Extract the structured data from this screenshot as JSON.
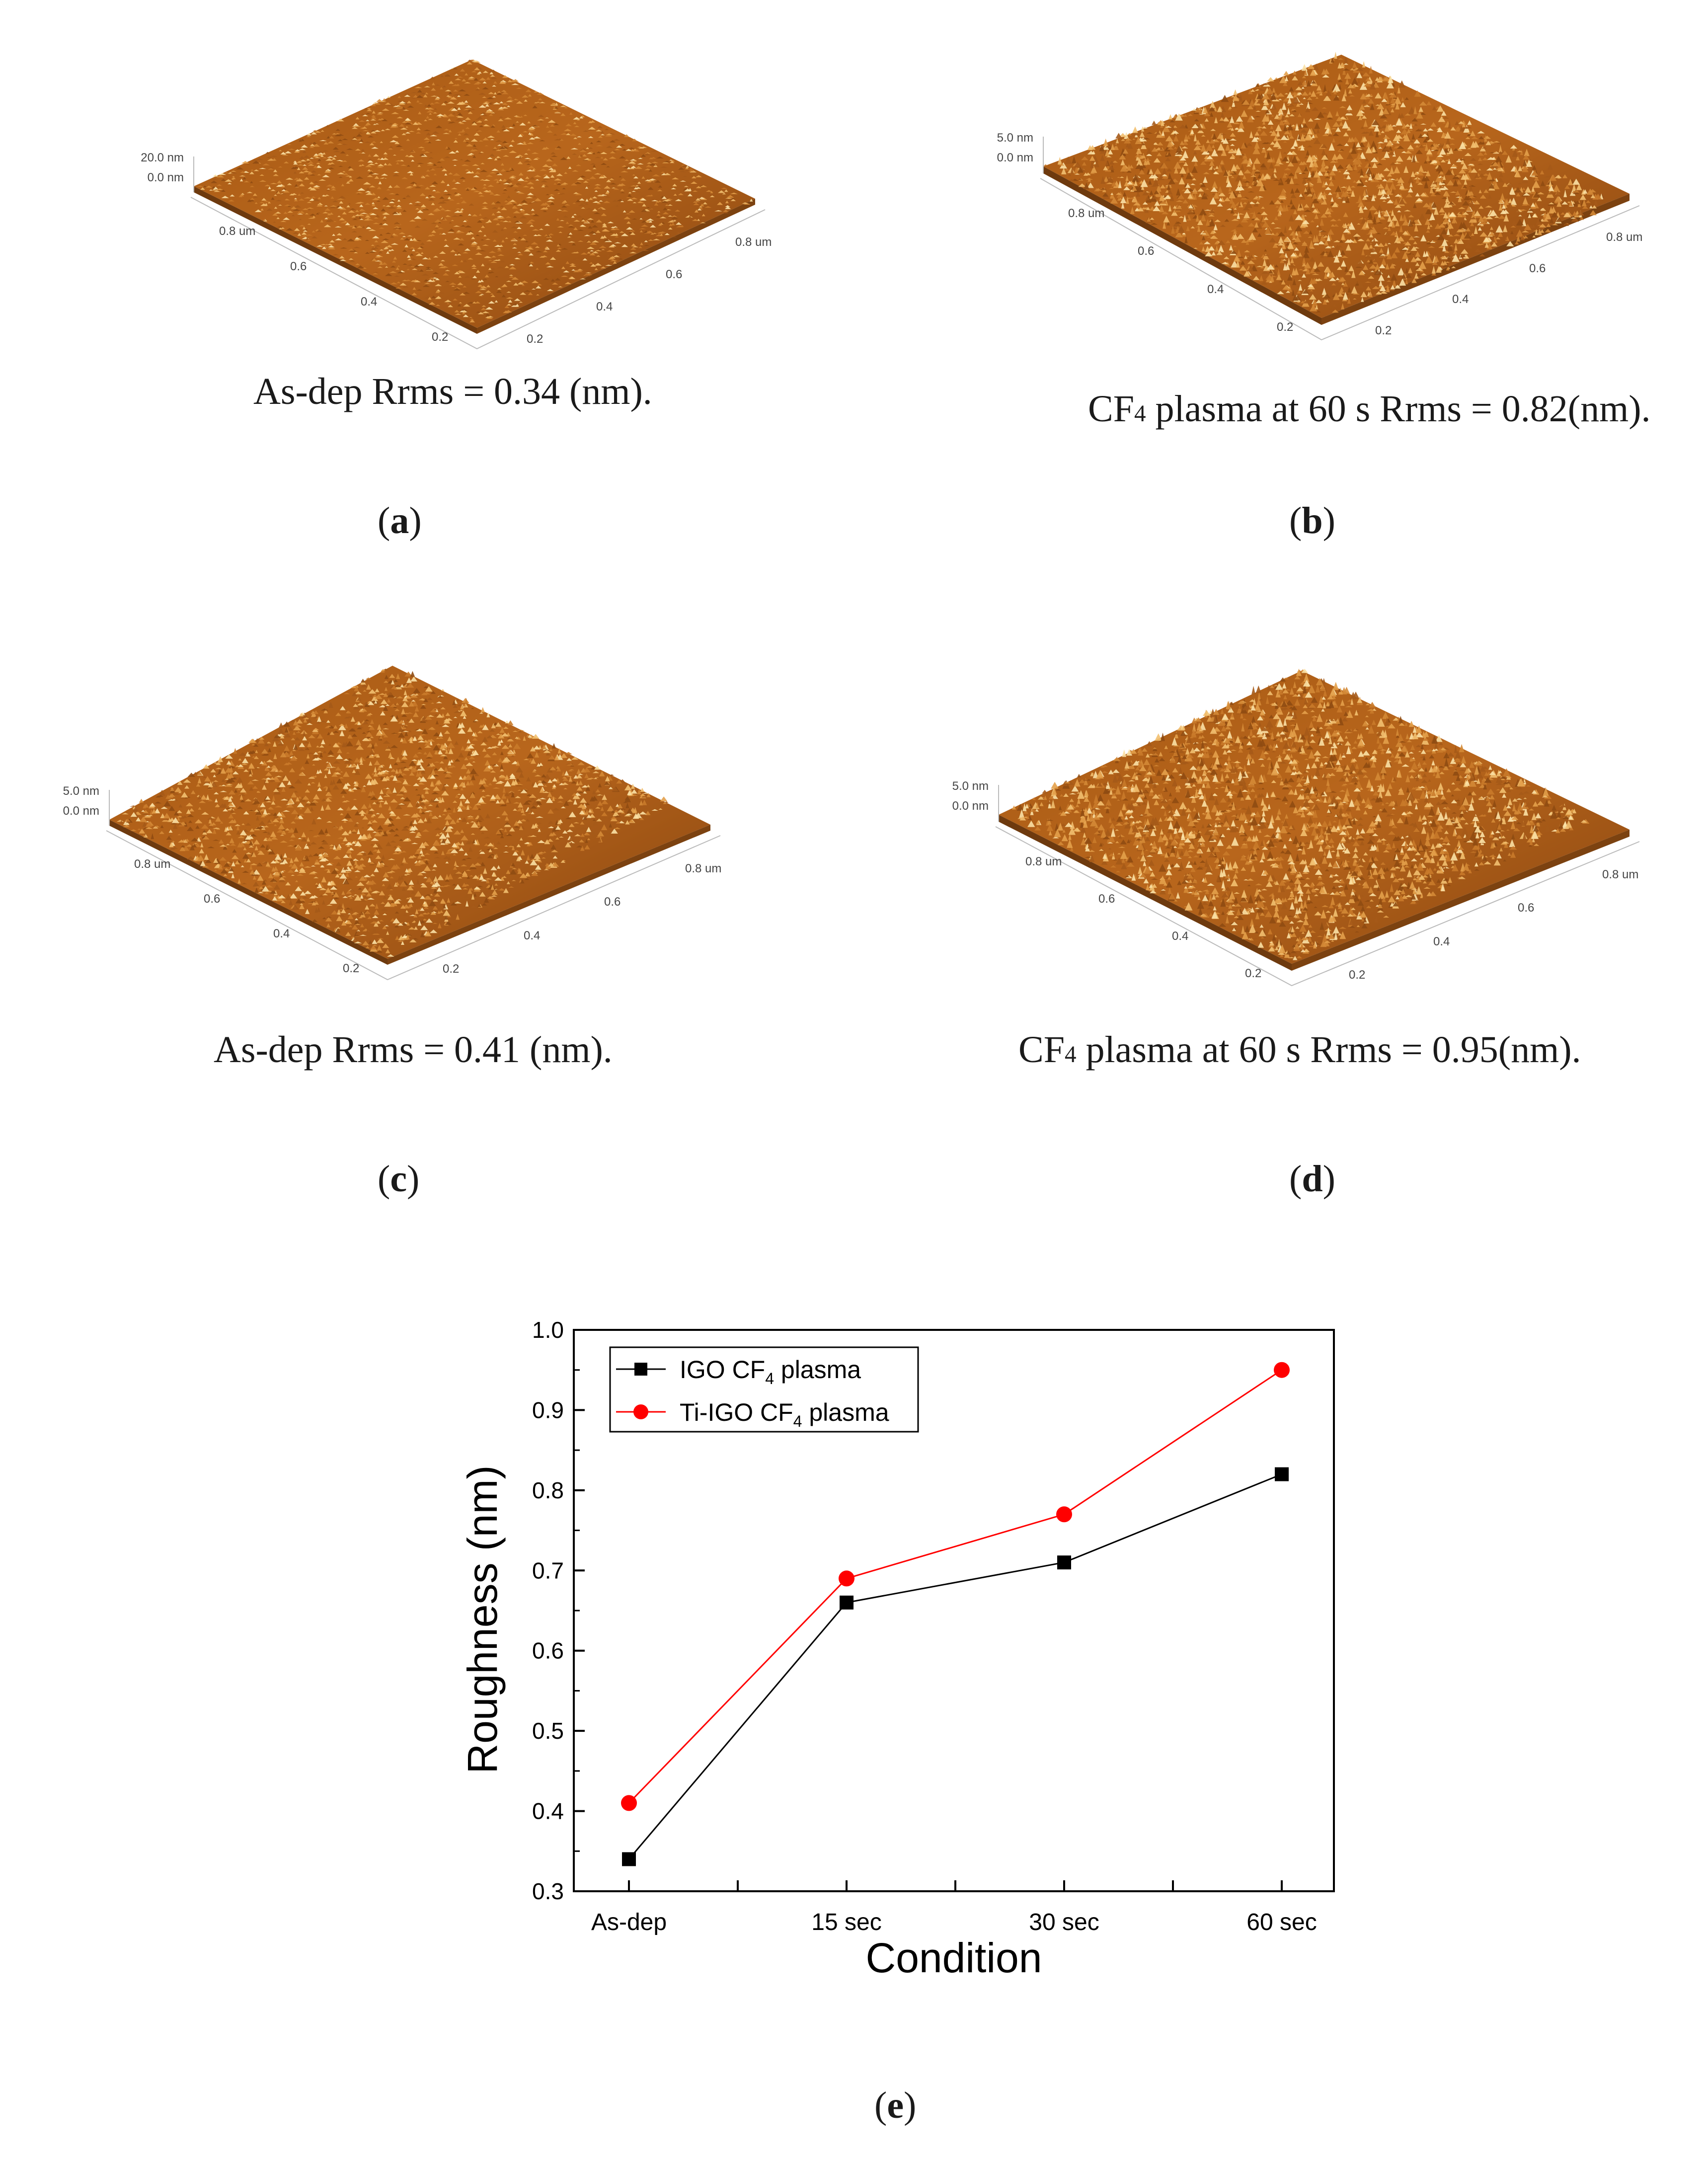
{
  "panels": [
    {
      "id": "a",
      "label": "a",
      "caption": "As-dep Rrms = 0.34 (nm).",
      "cf_prefix": "",
      "z_labels": [
        "20.0 nm",
        "0.0 nm"
      ],
      "axis_labels": [
        "0.8 um",
        "0.6",
        "0.4",
        "0.2",
        "0.8 um",
        "0.6",
        "0.4",
        "0.2"
      ]
    },
    {
      "id": "b",
      "label": "b",
      "caption_prefix": "CF",
      "caption_sub": "4",
      "caption_rest": " plasma at 60 s Rrms = 0.82(nm).",
      "z_labels": [
        "5.0 nm",
        "0.0 nm"
      ],
      "axis_labels": [
        "0.8 um",
        "0.6",
        "0.4",
        "0.2",
        "0.8 um",
        "0.6",
        "0.4",
        "0.2"
      ]
    },
    {
      "id": "c",
      "label": "c",
      "caption": "As-dep Rrms = 0.41 (nm).",
      "z_labels": [
        "5.0 nm",
        "0.0 nm"
      ],
      "axis_labels": [
        "0.8 um",
        "0.6",
        "0.4",
        "0.2",
        "0.8 um",
        "0.6",
        "0.4",
        "0.2"
      ]
    },
    {
      "id": "d",
      "label": "d",
      "caption_prefix": "CF",
      "caption_sub": "4",
      "caption_rest": " plasma at 60 s Rrms = 0.95(nm).",
      "z_labels": [
        "5.0 nm",
        "0.0 nm"
      ],
      "axis_labels": [
        "0.8 um",
        "0.6",
        "0.4",
        "0.2",
        "0.8 um",
        "0.6",
        "0.4",
        "0.2"
      ]
    }
  ],
  "figure_e_label": "e",
  "colors": {
    "series1": "#000000",
    "series2": "#ff0000",
    "afm_base": "#b5651d"
  },
  "chart_data": {
    "type": "line",
    "categories": [
      "As-dep",
      "15 sec",
      "30 sec",
      "60 sec"
    ],
    "series": [
      {
        "name_main": "IGO CF",
        "name_sub": "4",
        "name_tail": " plasma",
        "marker": "square",
        "color": "#000000",
        "values": [
          0.34,
          0.66,
          0.71,
          0.82
        ]
      },
      {
        "name_main": "Ti-IGO CF",
        "name_sub": "4",
        "name_tail": " plasma",
        "marker": "circle",
        "color": "#ff0000",
        "values": [
          0.41,
          0.69,
          0.77,
          0.95
        ]
      }
    ],
    "xlabel": "Condition",
    "ylabel": "Roughness (nm)",
    "ylim": [
      0.3,
      1.0
    ],
    "yticks": [
      "0.3",
      "0.4",
      "0.5",
      "0.6",
      "0.7",
      "0.8",
      "0.9",
      "1.0"
    ],
    "legend_position": "top-left"
  }
}
